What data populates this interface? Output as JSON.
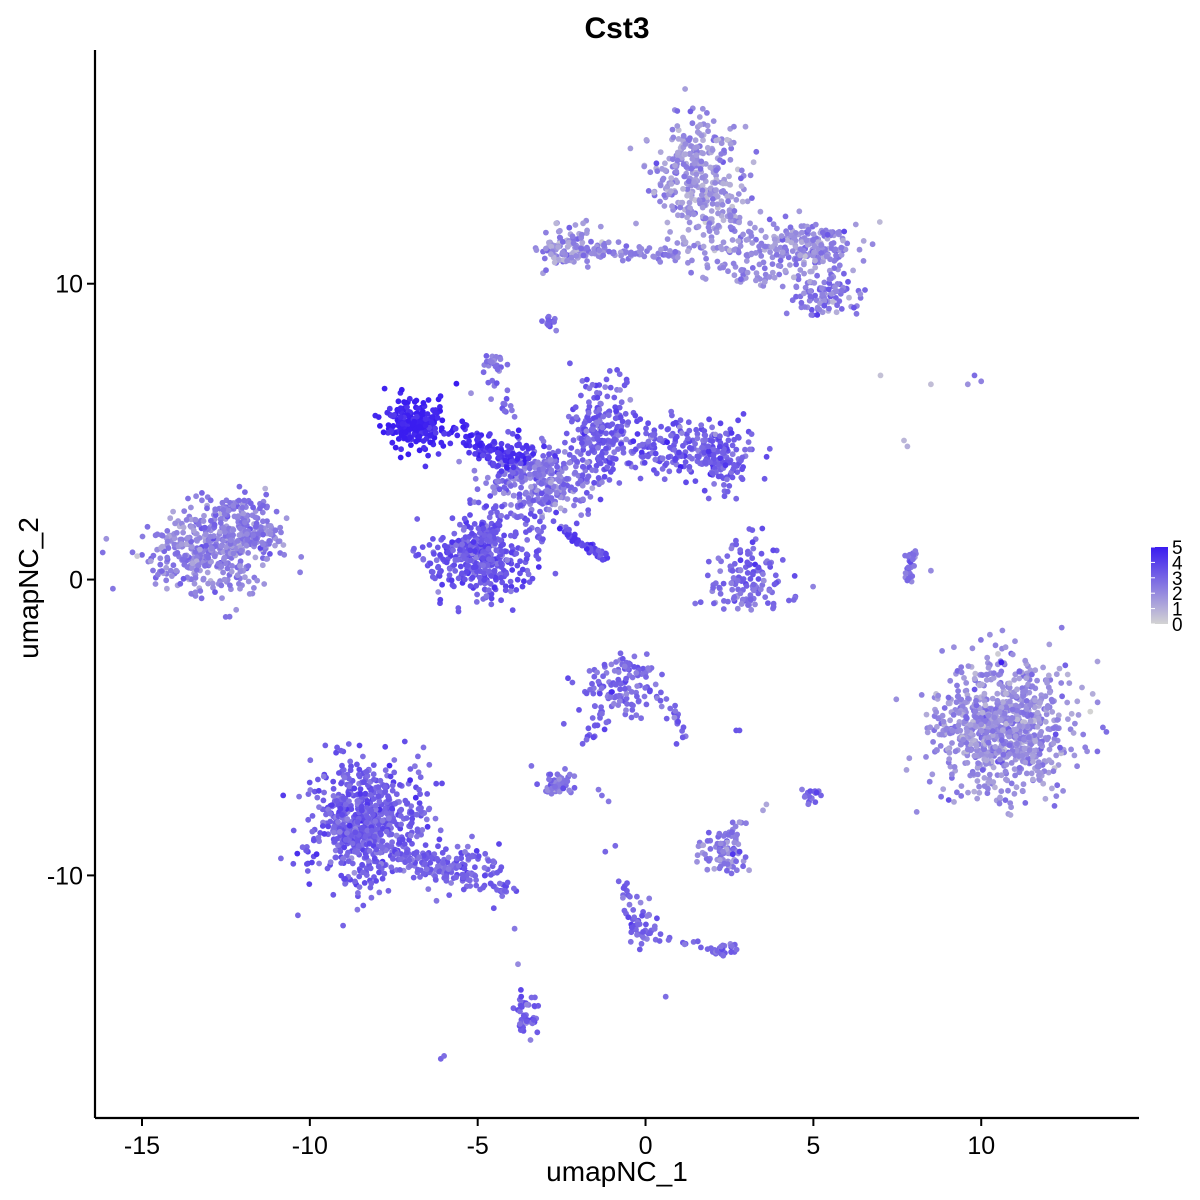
{
  "chart_data": {
    "type": "scatter",
    "title": "Cst3",
    "xlabel": "umapNC_1",
    "ylabel": "umapNC_2",
    "xlim": [
      -16.4,
      14.7
    ],
    "ylim": [
      -18.2,
      17.9
    ],
    "x_ticks": [
      -15,
      -10,
      -5,
      0,
      5,
      10
    ],
    "x_tick_labels": [
      "-15",
      "-10",
      "-5",
      "0",
      "5",
      "10"
    ],
    "y_ticks": [
      -10,
      0,
      10
    ],
    "y_tick_labels": [
      "-10",
      "0",
      "10"
    ],
    "grid": false,
    "legend_placement": "right",
    "color_scale": {
      "low_color": "#d3d3d3",
      "high_color": "#3a1cf0",
      "min": 0,
      "max": 5,
      "ticks": [
        0,
        1,
        2,
        3,
        4,
        5
      ],
      "tick_labels": [
        "0",
        "1",
        "2",
        "3",
        "4",
        "5"
      ]
    },
    "clusters": [
      {
        "cx": -12.9,
        "cy": 1.0,
        "sx": 1.0,
        "sy": 0.75,
        "n": 420,
        "expr": 2.2,
        "expr_sd": 0.6
      },
      {
        "cx": -12.0,
        "cy": 1.9,
        "sx": 0.6,
        "sy": 0.4,
        "n": 60,
        "expr": 2.5,
        "expr_sd": 0.6
      },
      {
        "cx": -8.3,
        "cy": -8.2,
        "sx": 0.85,
        "sy": 1.0,
        "n": 700,
        "expr": 3.2,
        "expr_sd": 0.5
      },
      {
        "cx": -5.7,
        "cy": -9.6,
        "sx": 0.7,
        "sy": 0.35,
        "n": 80,
        "expr": 3.1,
        "expr_sd": 0.5
      },
      {
        "cx": -4.9,
        "cy": 0.7,
        "sx": 0.75,
        "sy": 0.7,
        "n": 380,
        "expr": 3.4,
        "expr_sd": 0.5
      },
      {
        "cx": -6.9,
        "cy": 5.2,
        "sx": 0.45,
        "sy": 0.45,
        "n": 190,
        "expr": 4.8,
        "expr_sd": 0.3
      },
      {
        "cx": -3.2,
        "cy": 3.3,
        "sx": 0.75,
        "sy": 0.6,
        "n": 300,
        "expr": 2.6,
        "expr_sd": 0.6
      },
      {
        "cx": -1.3,
        "cy": 4.9,
        "sx": 0.45,
        "sy": 0.85,
        "n": 220,
        "expr": 3.1,
        "expr_sd": 0.5
      },
      {
        "cx": 1.2,
        "cy": 4.5,
        "sx": 1.0,
        "sy": 0.45,
        "n": 220,
        "expr": 3.2,
        "expr_sd": 0.5
      },
      {
        "cx": 2.2,
        "cy": 3.8,
        "sx": 0.4,
        "sy": 0.45,
        "n": 80,
        "expr": 3.3,
        "expr_sd": 0.5
      },
      {
        "cx": -4.2,
        "cy": 4.3,
        "sx": 0.45,
        "sy": 0.3,
        "n": 70,
        "expr": 4.3,
        "expr_sd": 0.4
      },
      {
        "cx": 3.0,
        "cy": 0.5,
        "sx": 0.45,
        "sy": 0.5,
        "n": 60,
        "expr": 3.0,
        "expr_sd": 0.5
      },
      {
        "cx": 3.0,
        "cy": -0.5,
        "sx": 0.65,
        "sy": 0.3,
        "n": 80,
        "expr": 2.8,
        "expr_sd": 0.5
      },
      {
        "cx": 10.7,
        "cy": -5.0,
        "sx": 1.0,
        "sy": 1.1,
        "n": 850,
        "expr": 1.9,
        "expr_sd": 0.6
      },
      {
        "cx": 9.0,
        "cy": -5.0,
        "sx": 0.3,
        "sy": 0.5,
        "n": 30,
        "expr": 2.0,
        "expr_sd": 0.5
      },
      {
        "cx": 1.6,
        "cy": 13.6,
        "sx": 0.7,
        "sy": 1.0,
        "n": 320,
        "expr": 1.7,
        "expr_sd": 0.6
      },
      {
        "cx": 4.8,
        "cy": 11.2,
        "sx": 0.7,
        "sy": 0.45,
        "n": 200,
        "expr": 2.1,
        "expr_sd": 0.6
      },
      {
        "cx": 5.3,
        "cy": 9.5,
        "sx": 0.55,
        "sy": 0.35,
        "n": 90,
        "expr": 2.4,
        "expr_sd": 0.6
      },
      {
        "cx": -2.3,
        "cy": 11.3,
        "sx": 0.6,
        "sy": 0.35,
        "n": 110,
        "expr": 1.9,
        "expr_sd": 0.6
      },
      {
        "cx": -0.8,
        "cy": -3.6,
        "sx": 0.55,
        "sy": 0.55,
        "n": 120,
        "expr": 2.9,
        "expr_sd": 0.5
      },
      {
        "cx": -2.6,
        "cy": -6.9,
        "sx": 0.25,
        "sy": 0.2,
        "n": 50,
        "expr": 2.7,
        "expr_sd": 0.5
      },
      {
        "cx": 2.4,
        "cy": -9.3,
        "sx": 0.4,
        "sy": 0.35,
        "n": 80,
        "expr": 2.4,
        "expr_sd": 0.6
      },
      {
        "cx": -3.5,
        "cy": -14.7,
        "sx": 0.2,
        "sy": 0.35,
        "n": 45,
        "expr": 3.1,
        "expr_sd": 0.5
      },
      {
        "cx": -4.5,
        "cy": 7.3,
        "sx": 0.2,
        "sy": 0.15,
        "n": 22,
        "expr": 2.6,
        "expr_sd": 0.5
      },
      {
        "cx": -2.9,
        "cy": 8.7,
        "sx": 0.12,
        "sy": 0.12,
        "n": 12,
        "expr": 3.0,
        "expr_sd": 0.5
      },
      {
        "cx": 2.3,
        "cy": -12.6,
        "sx": 0.25,
        "sy": 0.12,
        "n": 22,
        "expr": 3.0,
        "expr_sd": 0.5
      },
      {
        "cx": 5.0,
        "cy": -7.3,
        "sx": 0.15,
        "sy": 0.15,
        "n": 16,
        "expr": 3.0,
        "expr_sd": 0.5
      },
      {
        "cx": 0.0,
        "cy": -11.8,
        "sx": 0.2,
        "sy": 0.4,
        "n": 30,
        "expr": 3.0,
        "expr_sd": 0.5
      }
    ],
    "streaks": [
      {
        "x0": -8.0,
        "y0": 5.7,
        "x1": -5.0,
        "y1": 4.6,
        "n": 40,
        "spread": 0.15,
        "expr": 4.6
      },
      {
        "x0": -5.6,
        "y0": 5.4,
        "x1": -4.3,
        "y1": 4.1,
        "n": 25,
        "spread": 0.12,
        "expr": 4.5
      },
      {
        "x0": -2.5,
        "y0": 1.7,
        "x1": -1.2,
        "y1": 0.7,
        "n": 45,
        "spread": 0.07,
        "expr": 4.1
      },
      {
        "x0": -4.6,
        "y0": 2.5,
        "x1": -4.9,
        "y1": 1.1,
        "n": 30,
        "spread": 0.25,
        "expr": 3.4
      },
      {
        "x0": -3.4,
        "y0": 2.5,
        "x1": -3.1,
        "y1": 1.0,
        "n": 25,
        "spread": 0.25,
        "expr": 3.2
      },
      {
        "x0": -12.1,
        "y0": 1.5,
        "x1": -10.8,
        "y1": 1.4,
        "n": 40,
        "spread": 0.25,
        "expr": 2.4
      },
      {
        "x0": -12.8,
        "y0": 2.1,
        "x1": -11.7,
        "y1": 2.8,
        "n": 25,
        "spread": 0.2,
        "expr": 2.5
      },
      {
        "x0": -7.5,
        "y0": -9.3,
        "x1": -4.0,
        "y1": -10.5,
        "n": 100,
        "spread": 0.22,
        "expr": 3.1
      },
      {
        "x0": -2.0,
        "y0": 11.1,
        "x1": 1.0,
        "y1": 11.0,
        "n": 70,
        "spread": 0.12,
        "expr": 2.2
      },
      {
        "x0": 1.0,
        "y0": 11.1,
        "x1": 4.0,
        "y1": 11.0,
        "n": 60,
        "spread": 0.45,
        "expr": 2.0
      },
      {
        "x0": 1.5,
        "y0": 12.8,
        "x1": 3.3,
        "y1": 11.4,
        "n": 50,
        "spread": 0.35,
        "expr": 1.9
      },
      {
        "x0": 2.3,
        "y0": 10.3,
        "x1": 4.0,
        "y1": 10.0,
        "n": 20,
        "spread": 0.2,
        "expr": 1.9
      },
      {
        "x0": -4.8,
        "y0": 7.0,
        "x1": -4.0,
        "y1": 5.8,
        "n": 15,
        "spread": 0.1,
        "expr": 2.8
      },
      {
        "x0": 8.0,
        "y0": 0.9,
        "x1": 7.8,
        "y1": 0.0,
        "n": 25,
        "spread": 0.08,
        "expr": 2.8
      },
      {
        "x0": -1.4,
        "y0": -4.4,
        "x1": -1.7,
        "y1": -5.6,
        "n": 18,
        "spread": 0.12,
        "expr": 3.0
      },
      {
        "x0": 0.4,
        "y0": -3.9,
        "x1": 1.2,
        "y1": -5.4,
        "n": 22,
        "spread": 0.15,
        "expr": 3.0
      },
      {
        "x0": -0.6,
        "y0": -10.4,
        "x1": -0.3,
        "y1": -12.2,
        "n": 22,
        "spread": 0.1,
        "expr": 3.1
      },
      {
        "x0": 0.4,
        "y0": -12.1,
        "x1": 2.3,
        "y1": -12.5,
        "n": 14,
        "spread": 0.1,
        "expr": 3.0
      },
      {
        "x0": 2.4,
        "y0": -8.6,
        "x1": 3.0,
        "y1": -8.3,
        "n": 10,
        "spread": 0.12,
        "expr": 2.5
      }
    ],
    "points": [
      {
        "x": 7.0,
        "y": 6.9,
        "v": 0.5
      },
      {
        "x": 8.5,
        "y": 6.6,
        "v": 0.6
      },
      {
        "x": 9.6,
        "y": 6.6,
        "v": 1.8
      },
      {
        "x": 9.8,
        "y": 6.9,
        "v": 2.8
      },
      {
        "x": 10.0,
        "y": 6.7,
        "v": 2.2
      },
      {
        "x": 7.7,
        "y": 4.7,
        "v": 0.8
      },
      {
        "x": 7.8,
        "y": 4.5,
        "v": 1.0
      },
      {
        "x": 8.5,
        "y": 0.3,
        "v": 2.0
      },
      {
        "x": 10.6,
        "y": -2.8,
        "v": 4.8
      },
      {
        "x": -3.9,
        "y": -11.8,
        "v": 2.5
      },
      {
        "x": -3.8,
        "y": -13.0,
        "v": 2.0
      },
      {
        "x": -6.1,
        "y": -16.2,
        "v": 3.0
      },
      {
        "x": -6.0,
        "y": -16.1,
        "v": 2.8
      },
      {
        "x": 0.6,
        "y": -14.1,
        "v": 2.8
      },
      {
        "x": 2.7,
        "y": -5.1,
        "v": 3.5
      },
      {
        "x": 2.8,
        "y": -5.1,
        "v": 3.4
      },
      {
        "x": 5.1,
        "y": -7.2,
        "v": 4.0
      },
      {
        "x": -1.0,
        "y": -3.8,
        "v": 4.5
      },
      {
        "x": -1.3,
        "y": -7.3,
        "v": 2.7
      },
      {
        "x": -1.1,
        "y": -7.5,
        "v": 2.5
      },
      {
        "x": -1.2,
        "y": -9.2,
        "v": 3.0
      },
      {
        "x": -0.9,
        "y": -9.0,
        "v": 2.9
      },
      {
        "x": -2.4,
        "y": -6.4,
        "v": 2.6
      },
      {
        "x": -3.4,
        "y": -6.3,
        "v": 2.7
      },
      {
        "x": -1.4,
        "y": -7.1,
        "v": 2.5
      },
      {
        "x": -0.8,
        "y": -10.2,
        "v": 3.0
      },
      {
        "x": 3.6,
        "y": -7.6,
        "v": 1.2
      },
      {
        "x": 3.5,
        "y": -7.8,
        "v": 1.4
      },
      {
        "x": 2.8,
        "y": -8.2,
        "v": 1.5
      },
      {
        "x": -2.9,
        "y": 8.6,
        "v": 3.0
      },
      {
        "x": -5.2,
        "y": 6.3,
        "v": 1.8
      },
      {
        "x": -4.2,
        "y": 5.7,
        "v": 2.8
      },
      {
        "x": -3.9,
        "y": 5.5,
        "v": 2.5
      },
      {
        "x": -4.6,
        "y": 6.1,
        "v": 2.2
      }
    ]
  }
}
